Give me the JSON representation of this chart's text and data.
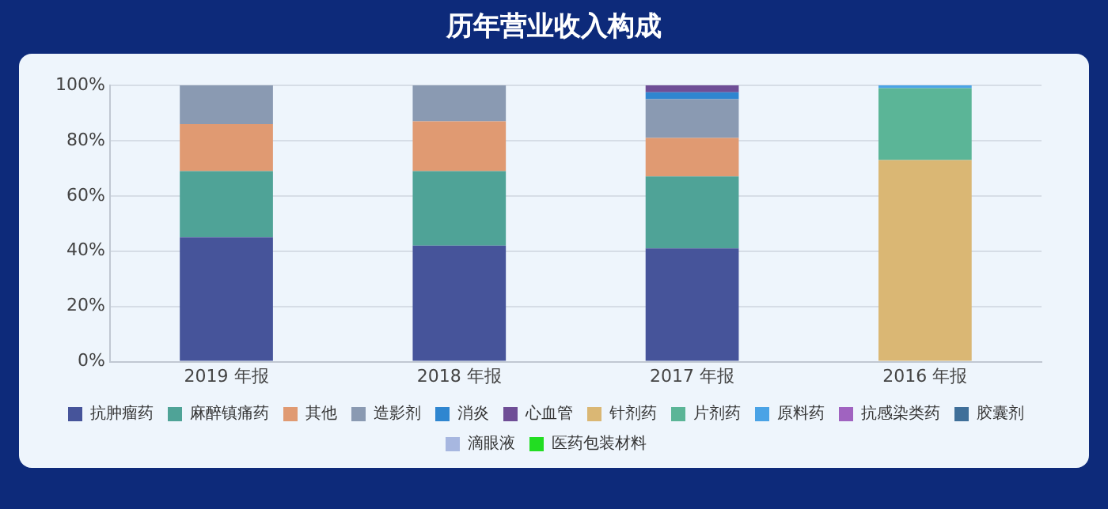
{
  "chart_data": {
    "type": "bar",
    "title": "历年营业收入构成",
    "stacked": true,
    "categories": [
      "2019 年报",
      "2018 年报",
      "2017 年报",
      "2016 年报"
    ],
    "series": [
      {
        "name": "抗肿瘤药",
        "color": "#46549a",
        "values": [
          45,
          42,
          41,
          null
        ]
      },
      {
        "name": "麻醉镇痛药",
        "color": "#4fa397",
        "values": [
          24,
          27,
          26,
          null
        ]
      },
      {
        "name": "其他",
        "color": "#e09a72",
        "values": [
          17,
          18,
          14,
          null
        ]
      },
      {
        "name": "造影剂",
        "color": "#8a9ab2",
        "values": [
          14,
          13,
          14,
          null
        ]
      },
      {
        "name": "消炎",
        "color": "#2f86d0",
        "values": [
          null,
          null,
          2.5,
          null
        ]
      },
      {
        "name": "心血管",
        "color": "#6f4e96",
        "values": [
          null,
          null,
          2.5,
          null
        ]
      },
      {
        "name": "针剂药",
        "color": "#dab774",
        "values": [
          null,
          null,
          null,
          73
        ]
      },
      {
        "name": "片剂药",
        "color": "#5bb597",
        "values": [
          null,
          null,
          null,
          26
        ]
      },
      {
        "name": "原料药",
        "color": "#4aa3e6",
        "values": [
          null,
          null,
          null,
          1
        ]
      },
      {
        "name": "抗感染类药",
        "color": "#a063c0",
        "values": [
          null,
          null,
          null,
          null
        ]
      },
      {
        "name": "胶囊剂",
        "color": "#3f6f99",
        "values": [
          null,
          null,
          null,
          null
        ]
      },
      {
        "name": "滴眼液",
        "color": "#a7b7e0",
        "values": [
          null,
          null,
          null,
          null
        ]
      },
      {
        "name": "医药包装材料",
        "color": "#22dd22",
        "values": [
          null,
          null,
          null,
          null
        ]
      }
    ],
    "ylim": [
      0,
      100
    ],
    "yticks": [
      {
        "value": 0,
        "label": "0%"
      },
      {
        "value": 20,
        "label": "20%"
      },
      {
        "value": 40,
        "label": "40%"
      },
      {
        "value": 60,
        "label": "60%"
      },
      {
        "value": 80,
        "label": "80%"
      },
      {
        "value": 100,
        "label": "100%"
      }
    ],
    "grid": "y",
    "legend": "bottom"
  }
}
